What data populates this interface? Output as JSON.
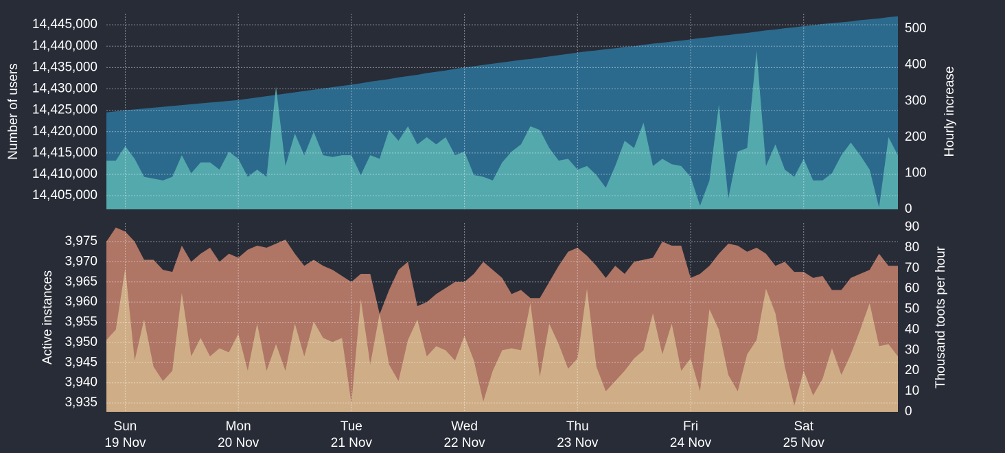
{
  "chart_data": [
    {
      "type": "area",
      "ylabel": "Number of users",
      "y2label": "Hourly increase",
      "x": [
        0,
        2,
        4,
        6,
        8,
        10,
        12,
        14,
        16,
        18,
        20,
        22,
        24,
        26,
        28,
        30,
        32,
        34,
        36,
        38,
        40,
        42,
        44,
        46,
        48,
        50,
        52,
        54,
        56,
        58,
        60,
        62,
        64,
        66,
        68,
        70,
        72,
        74,
        76,
        78,
        80,
        82,
        84,
        86,
        88,
        90,
        92,
        94,
        96,
        98,
        100,
        102,
        104,
        106,
        108,
        110,
        112,
        114,
        116,
        118,
        120,
        122,
        124,
        126,
        128,
        130,
        132,
        134,
        136,
        138,
        140,
        142,
        144,
        146,
        148,
        150,
        152,
        154,
        156,
        158,
        160,
        162,
        164,
        166,
        168
      ],
      "xlim": [
        0,
        168
      ],
      "xticks": [
        4,
        28,
        52,
        76,
        100,
        124,
        148
      ],
      "ylim": [
        14401800,
        14447600
      ],
      "yticks": [
        {
          "value": 14405000,
          "label": "14,405,000"
        },
        {
          "value": 14410000,
          "label": "14,410,000"
        },
        {
          "value": 14415000,
          "label": "14,415,000"
        },
        {
          "value": 14420000,
          "label": "14,420,000"
        },
        {
          "value": 14425000,
          "label": "14,425,000"
        },
        {
          "value": 14430000,
          "label": "14,430,000"
        },
        {
          "value": 14435000,
          "label": "14,435,000"
        },
        {
          "value": 14440000,
          "label": "14,440,000"
        },
        {
          "value": 14445000,
          "label": "14,445,000"
        }
      ],
      "y2lim": [
        0,
        542
      ],
      "y2ticks": [
        0,
        100,
        200,
        300,
        400,
        500
      ],
      "grid": true,
      "series": [
        {
          "color": "#2b6a8d",
          "values": [
            14424500,
            14424750,
            14425000,
            14425200,
            14425400,
            14425600,
            14425800,
            14426000,
            14426200,
            14426400,
            14426600,
            14426800,
            14427000,
            14427200,
            14427400,
            14427700,
            14428000,
            14428300,
            14428600,
            14428900,
            14429200,
            14429500,
            14429800,
            14430100,
            14430400,
            14430700,
            14431000,
            14431300,
            14431700,
            14432000,
            14432300,
            14432700,
            14433000,
            14433300,
            14433700,
            14434000,
            14434300,
            14434700,
            14435000,
            14435300,
            14435600,
            14435900,
            14436200,
            14436500,
            14436800,
            14437000,
            14437300,
            14437600,
            14437900,
            14438200,
            14438500,
            14438800,
            14439000,
            14439300,
            14439500,
            14439800,
            14440000,
            14440300,
            14440600,
            14440800,
            14441100,
            14441300,
            14441600,
            14441900,
            14442100,
            14442400,
            14442600,
            14442900,
            14443100,
            14443400,
            14443700,
            14443900,
            14444200,
            14444400,
            14444700,
            14444900,
            14445200,
            14445400,
            14445600,
            14445800,
            14446100,
            14446300,
            14446500,
            14446800,
            14447000
          ]
        },
        {
          "color": "#54a9ad",
          "axis": "y2",
          "values": [
            135,
            135,
            175,
            140,
            90,
            85,
            80,
            90,
            150,
            100,
            130,
            130,
            110,
            160,
            140,
            90,
            110,
            90,
            340,
            120,
            210,
            150,
            215,
            150,
            145,
            150,
            150,
            95,
            150,
            140,
            220,
            190,
            230,
            180,
            200,
            180,
            200,
            150,
            160,
            95,
            90,
            80,
            130,
            160,
            180,
            230,
            220,
            170,
            135,
            140,
            110,
            120,
            95,
            60,
            120,
            190,
            170,
            240,
            120,
            140,
            125,
            120,
            90,
            10,
            80,
            290,
            30,
            160,
            170,
            440,
            120,
            180,
            110,
            90,
            140,
            80,
            80,
            100,
            150,
            185,
            150,
            110,
            5,
            200,
            150
          ]
        }
      ]
    },
    {
      "type": "area",
      "ylabel": "Active instances",
      "y2label": "Thousand toots per hour",
      "x": [
        0,
        2,
        4,
        6,
        8,
        10,
        12,
        14,
        16,
        18,
        20,
        22,
        24,
        26,
        28,
        30,
        32,
        34,
        36,
        38,
        40,
        42,
        44,
        46,
        48,
        50,
        52,
        54,
        56,
        58,
        60,
        62,
        64,
        66,
        68,
        70,
        72,
        74,
        76,
        78,
        80,
        82,
        84,
        86,
        88,
        90,
        92,
        94,
        96,
        98,
        100,
        102,
        104,
        106,
        108,
        110,
        112,
        114,
        116,
        118,
        120,
        122,
        124,
        126,
        128,
        130,
        132,
        134,
        136,
        138,
        140,
        142,
        144,
        146,
        148,
        150,
        152,
        154,
        156,
        158,
        160,
        162,
        164,
        166,
        168
      ],
      "xlim": [
        0,
        168
      ],
      "xticks": [
        {
          "value": 4,
          "label": "Sun",
          "date": "19 Nov"
        },
        {
          "value": 28,
          "label": "Mon",
          "date": "20 Nov"
        },
        {
          "value": 52,
          "label": "Tue",
          "date": "21 Nov"
        },
        {
          "value": 76,
          "label": "Wed",
          "date": "22 Nov"
        },
        {
          "value": 100,
          "label": "Thu",
          "date": "23 Nov"
        },
        {
          "value": 124,
          "label": "Fri",
          "date": "24 Nov"
        },
        {
          "value": 148,
          "label": "Sat",
          "date": "25 Nov"
        }
      ],
      "ylim": [
        3932.8,
        3979.6
      ],
      "yticks": [
        {
          "value": 3935,
          "label": "3,935"
        },
        {
          "value": 3940,
          "label": "3,940"
        },
        {
          "value": 3945,
          "label": "3,945"
        },
        {
          "value": 3950,
          "label": "3,950"
        },
        {
          "value": 3955,
          "label": "3,955"
        },
        {
          "value": 3960,
          "label": "3,960"
        },
        {
          "value": 3965,
          "label": "3,965"
        },
        {
          "value": 3970,
          "label": "3,970"
        },
        {
          "value": 3975,
          "label": "3,975"
        }
      ],
      "y2lim": [
        0,
        92
      ],
      "y2ticks": [
        0,
        10,
        20,
        30,
        40,
        50,
        60,
        70,
        80,
        90
      ],
      "grid": true,
      "series": [
        {
          "color": "#af7565",
          "values": [
            3975,
            3978.5,
            3977.5,
            3975,
            3970.5,
            3970.5,
            3968,
            3967.5,
            3974,
            3970,
            3972,
            3973.5,
            3970,
            3972,
            3971,
            3973,
            3974,
            3973.5,
            3974.5,
            3975.5,
            3972,
            3969,
            3970.5,
            3969,
            3968,
            3966.5,
            3965,
            3967,
            3967,
            3957,
            3963,
            3968,
            3970,
            3959,
            3960,
            3962,
            3963.5,
            3965,
            3965,
            3967,
            3970,
            3968,
            3966,
            3962,
            3963,
            3961,
            3961,
            3965,
            3969,
            3972.5,
            3973.5,
            3971.5,
            3969,
            3966,
            3969,
            3967,
            3970,
            3970.5,
            3971,
            3975,
            3974,
            3974,
            3966,
            3967,
            3969,
            3972,
            3974.5,
            3974,
            3972.5,
            3973.5,
            3972,
            3969,
            3970,
            3967.5,
            3967.5,
            3966,
            3966.5,
            3963,
            3963,
            3966,
            3967,
            3968,
            3972,
            3969,
            3969
          ]
        },
        {
          "color": "#cfae87",
          "axis": "y2",
          "values": [
            35,
            40,
            70,
            25,
            45,
            22,
            15,
            20,
            58,
            27,
            36,
            27,
            31,
            29,
            38,
            20,
            43,
            20,
            33,
            20,
            43,
            27,
            44,
            36,
            34,
            36,
            4,
            55,
            23,
            48,
            23,
            15,
            35,
            45,
            27,
            32,
            30,
            25,
            37,
            25,
            5,
            20,
            30,
            31,
            30,
            53,
            17,
            43,
            33,
            21,
            26,
            60,
            22,
            10,
            15,
            20,
            26,
            30,
            48,
            28,
            43,
            20,
            26,
            10,
            50,
            40,
            18,
            10,
            28,
            35,
            60,
            48,
            22,
            3,
            20,
            8,
            16,
            31,
            18,
            28,
            40,
            53,
            32,
            33,
            27
          ]
        }
      ]
    }
  ]
}
